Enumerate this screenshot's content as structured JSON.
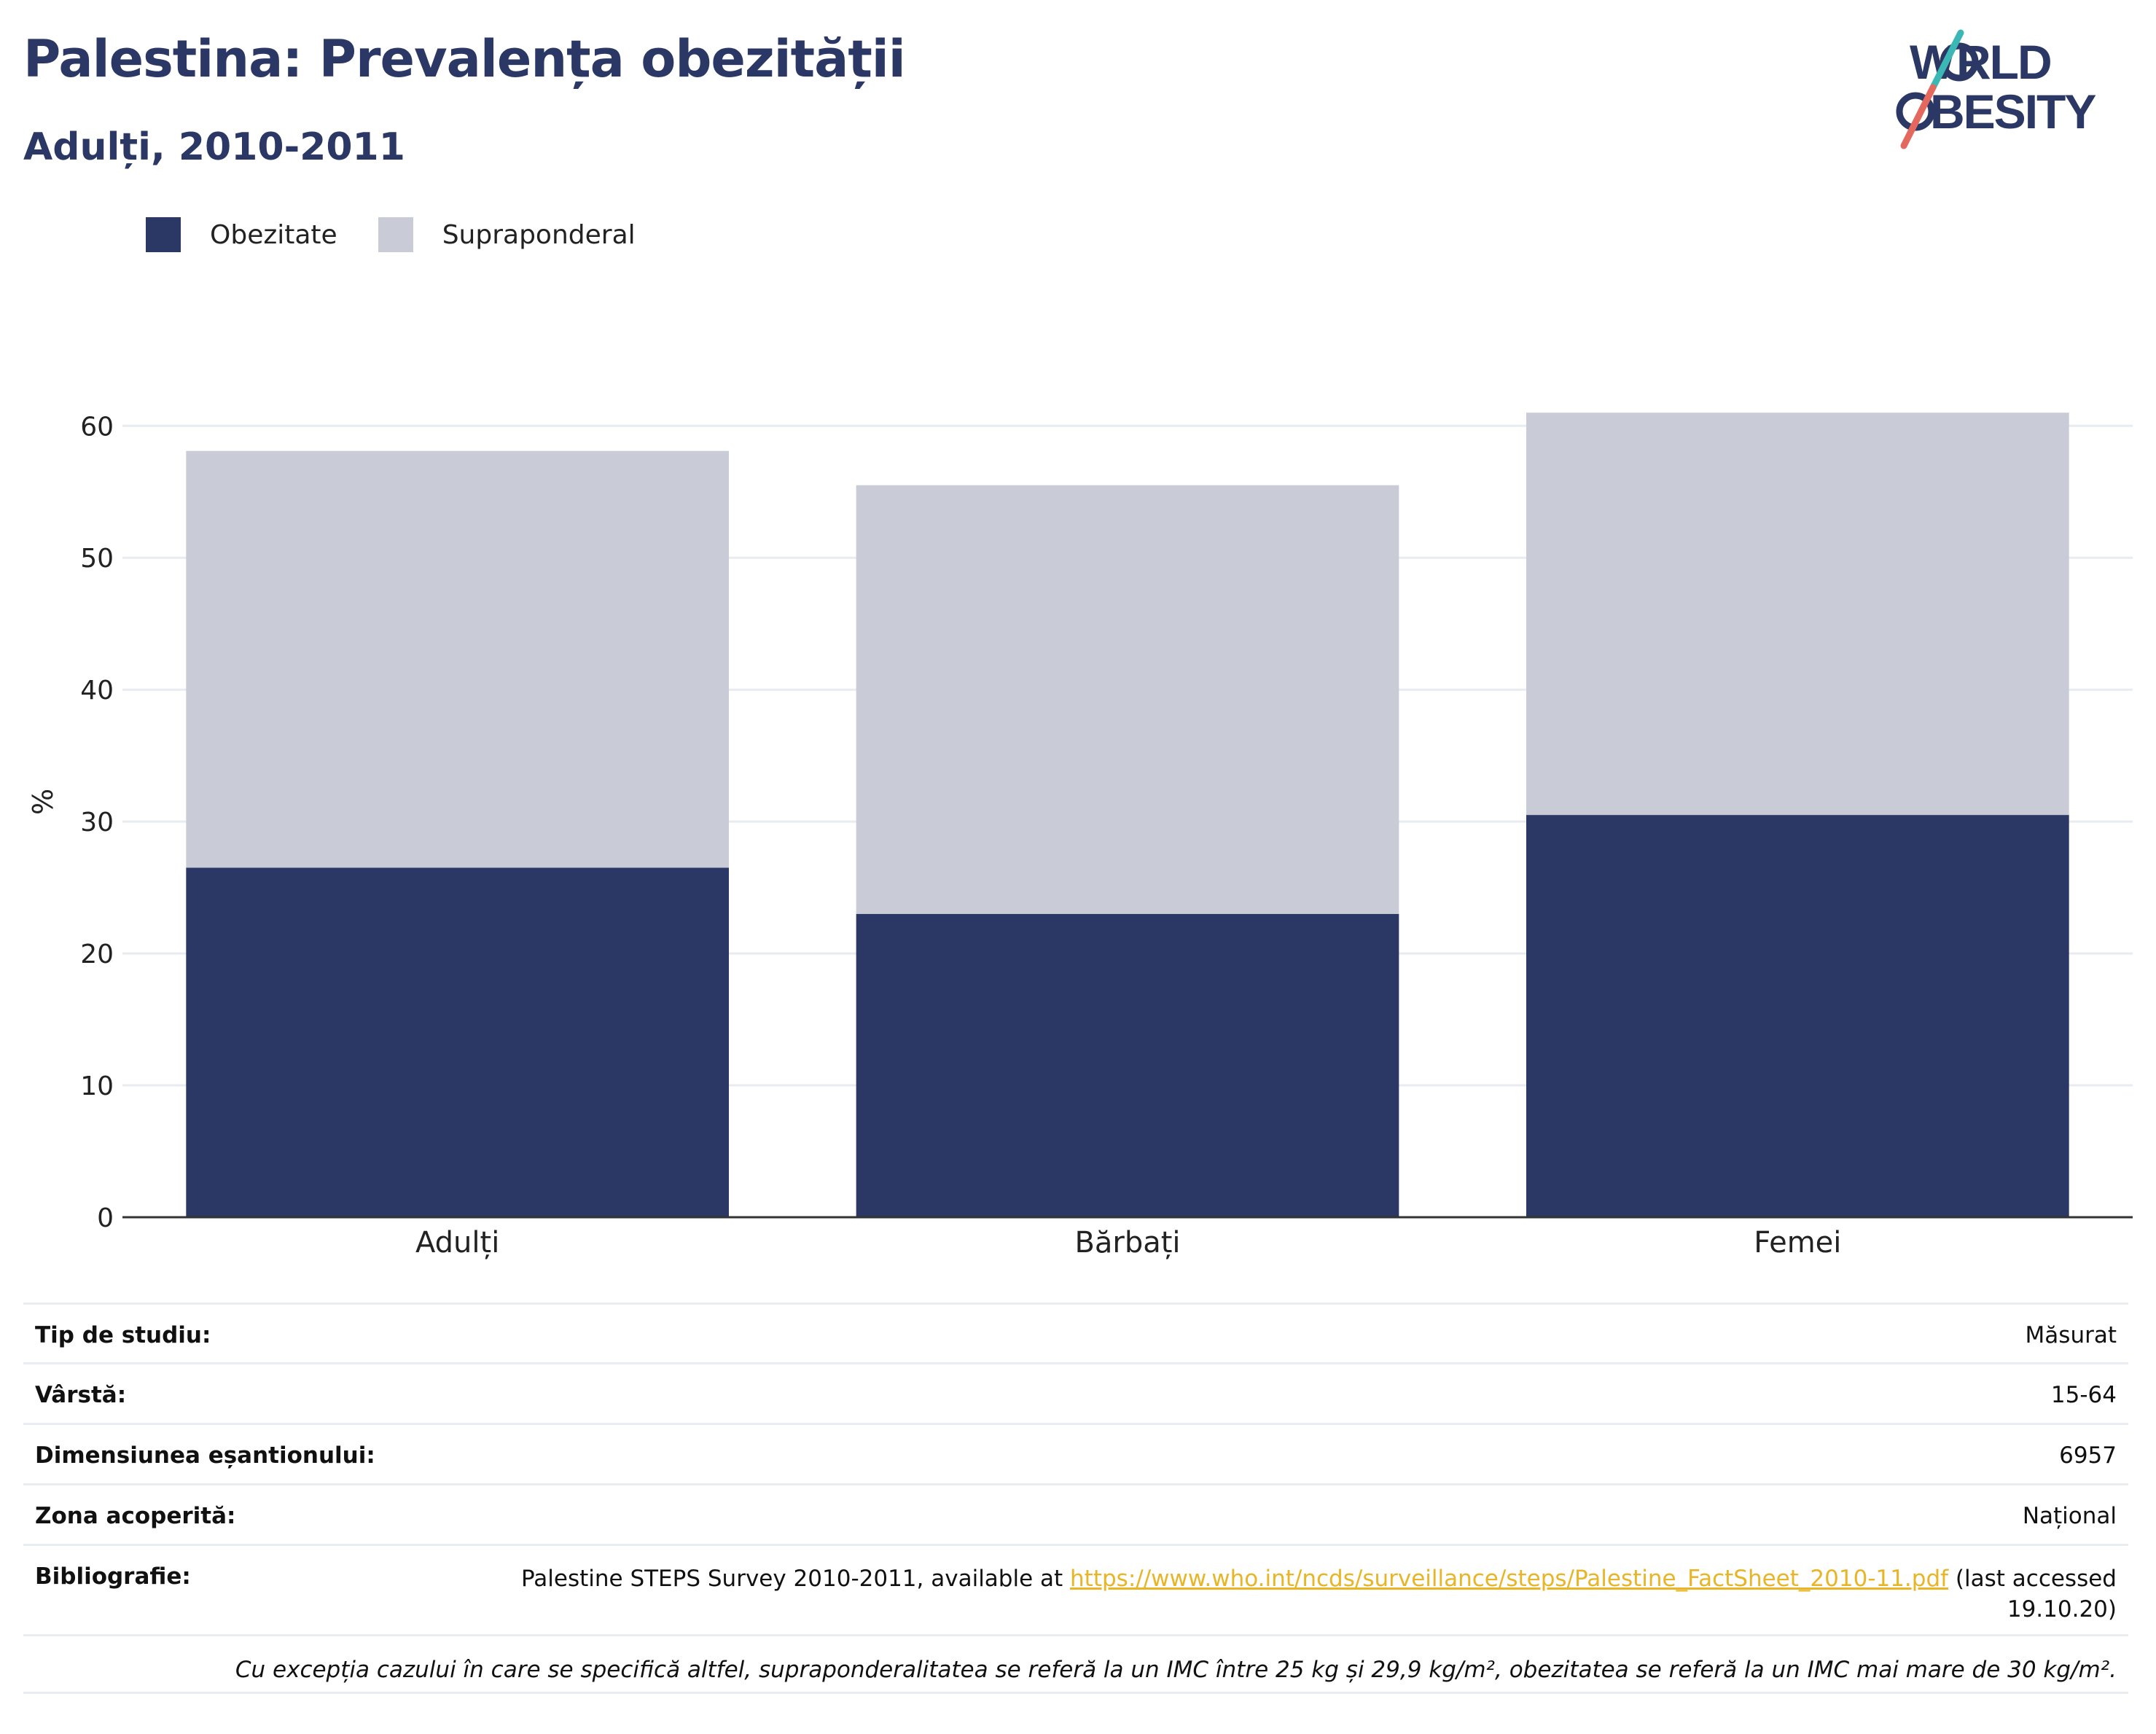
{
  "header": {
    "title": "Palestina: Prevalența obezității",
    "subtitle": "Adulți, 2010-2011"
  },
  "logo": {
    "line1": "WORLD",
    "line2": "OBESITY"
  },
  "chart_data": {
    "type": "bar",
    "stacked": true,
    "categories": [
      "Adulți",
      "Bărbați",
      "Femei"
    ],
    "series": [
      {
        "name": "Obezitate",
        "values": [
          26.5,
          23.0,
          30.5
        ],
        "color": "#2b3764"
      },
      {
        "name": "Supraponderal",
        "values": [
          31.6,
          32.5,
          30.5
        ],
        "color": "#c9cbd7"
      }
    ],
    "ylabel": "%",
    "ylim": [
      0,
      63
    ],
    "yticks": [
      0,
      10,
      20,
      30,
      40,
      50,
      60
    ],
    "grid": true,
    "legend_position": "top-left"
  },
  "info": {
    "rows": [
      {
        "label": "Tip de studiu:",
        "value": "Măsurat"
      },
      {
        "label": "Vârstă:",
        "value": "15-64"
      },
      {
        "label": "Dimensiunea eșantionului:",
        "value": "6957"
      },
      {
        "label": "Zona acoperită:",
        "value": "Național"
      }
    ],
    "bibliography": {
      "label": "Bibliografie:",
      "text_before": "Palestine STEPS Survey 2010-2011, available at ",
      "link": "https://www.who.int/ncds/surveillance/steps/Palestine_FactSheet_2010-11.pdf",
      "text_after": " (last accessed 19.10.20)"
    },
    "note": "Cu excepția cazului în care se specifică altfel, supraponderalitatea se referă la un IMC între 25 kg și 29,9 kg/m², obezitatea se referă la un IMC mai mare de 30 kg/m²."
  }
}
